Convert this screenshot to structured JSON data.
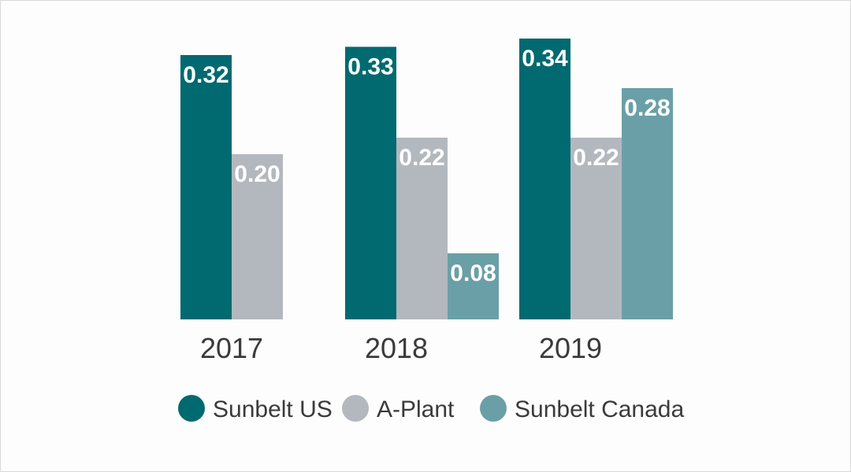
{
  "chart_data": {
    "type": "bar",
    "categories": [
      "2017",
      "2018",
      "2019"
    ],
    "series": [
      {
        "name": "Sunbelt US",
        "color": "#006a70",
        "values": [
          0.32,
          0.33,
          0.34
        ],
        "labels": [
          "0.32",
          "0.33",
          "0.34"
        ]
      },
      {
        "name": "A-Plant",
        "color": "#b3b8bf",
        "values": [
          0.2,
          0.22,
          0.22
        ],
        "labels": [
          "0.20",
          "0.22",
          "0.22"
        ]
      },
      {
        "name": "Sunbelt Canada",
        "color": "#6b9fa8",
        "values": [
          null,
          0.08,
          0.28
        ],
        "labels": [
          "",
          "0.08",
          "0.28"
        ]
      }
    ],
    "ylim": [
      0,
      0.35
    ],
    "legend_position": "bottom",
    "grid": false
  }
}
